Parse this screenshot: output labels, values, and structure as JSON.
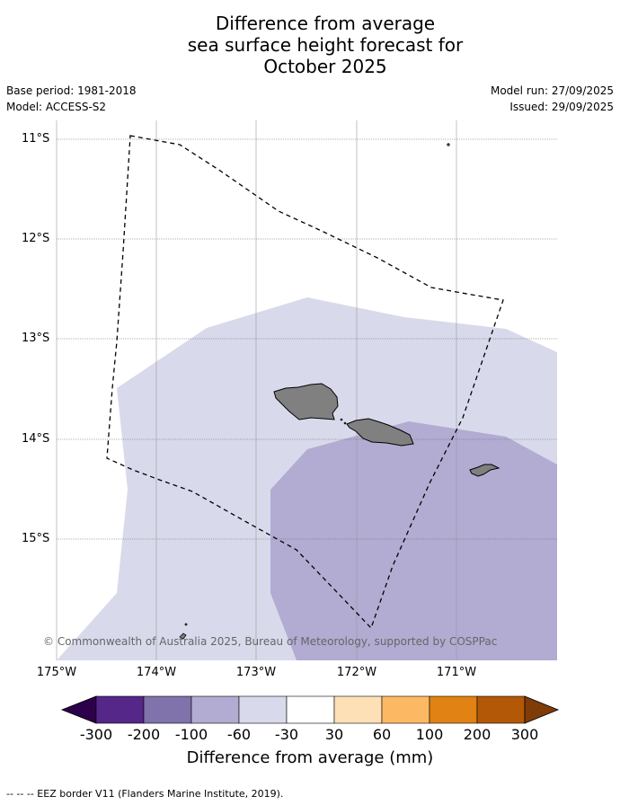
{
  "title_lines": [
    "Difference from average",
    "sea surface height forecast for",
    "October 2025"
  ],
  "meta": {
    "base_period": "Base period: 1981-2018",
    "model": "Model: ACCESS-S2",
    "model_run": "Model run: 27/09/2025",
    "issued": "Issued: 29/09/2025"
  },
  "axes": {
    "lat_labels": [
      "11°S",
      "12°S",
      "13°S",
      "14°S",
      "15°S"
    ],
    "lon_labels": [
      "175°W",
      "174°W",
      "173°W",
      "172°W",
      "171°W"
    ]
  },
  "copyright": "© Commonwealth of Australia 2025, Bureau of Meteorology, supported by COSPPac",
  "colorbar": {
    "title": "Difference from average (mm)",
    "tick_labels": [
      "-300",
      "-200",
      "-100",
      "-60",
      "-30",
      "30",
      "60",
      "100",
      "200",
      "300"
    ],
    "colors": [
      "#2d004b",
      "#542788",
      "#8073ac",
      "#b2abd2",
      "#d8daeb",
      "#ffffff",
      "#fee0b6",
      "#fdb863",
      "#e08214",
      "#b35806",
      "#7f3b08"
    ]
  },
  "legend_text": "--  --  -- EEZ border V11 (Flanders Marine Institute, 2019)."
}
